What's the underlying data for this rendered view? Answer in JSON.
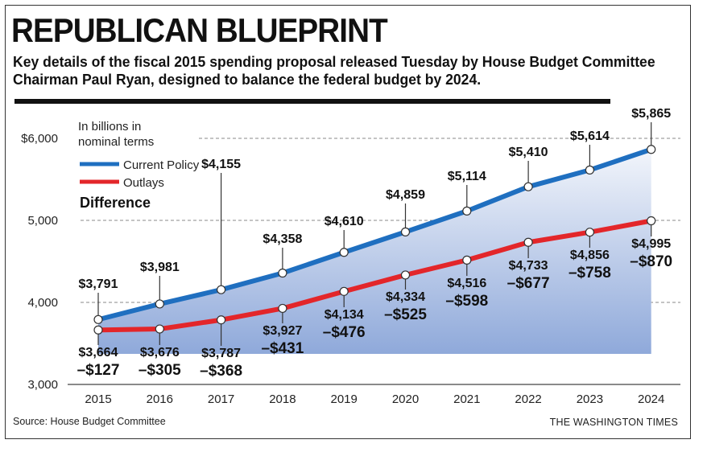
{
  "header": {
    "title": "REPUBLICAN BLUEPRINT",
    "subtitle": "Key details of the fiscal 2015 spending proposal released Tuesday by House Budget Committee Chairman Paul Ryan, designed to balance the federal budget by 2024."
  },
  "footer": {
    "source": "Source: House Budget Committee",
    "credit": "THE WASHINGTON TIMES"
  },
  "colors": {
    "current_policy": "#1f6fc0",
    "outlays": "#e3262a",
    "fill_top": "#f2f5fb",
    "fill_bottom": "#8fa9da"
  },
  "chart_data": {
    "type": "line",
    "unit_note": "In billions in nominal terms",
    "legend_title": "Difference",
    "x": [
      "2015",
      "2016",
      "2017",
      "2018",
      "2019",
      "2020",
      "2021",
      "2022",
      "2023",
      "2024"
    ],
    "ylim": [
      3000,
      6200
    ],
    "yticks": [
      3000,
      4000,
      5000,
      6000
    ],
    "ytick_labels": [
      "3,000",
      "4,000",
      "5,000",
      "$6,000"
    ],
    "grid": "dashed at 4,000, 5,000, 6,000",
    "legend_position": "top-left",
    "series": [
      {
        "name": "Current Policy",
        "values": [
          3791,
          3981,
          4155,
          4358,
          4610,
          4859,
          5114,
          5410,
          5614,
          5865
        ],
        "labels": [
          "$3,791",
          "$3,981",
          "$4,155",
          "$4,358",
          "$4,610",
          "$4,859",
          "$5,114",
          "$5,410",
          "$5,614",
          "$5,865"
        ]
      },
      {
        "name": "Outlays",
        "values": [
          3664,
          3676,
          3787,
          3927,
          4134,
          4334,
          4516,
          4733,
          4856,
          4995
        ],
        "labels": [
          "$3,664",
          "$3,676",
          "$3,787",
          "$3,927",
          "$4,134",
          "$4,334",
          "$4,516",
          "$4,733",
          "$4,856",
          "$4,995"
        ]
      }
    ],
    "difference": [
      -127,
      -305,
      -368,
      -431,
      -476,
      -525,
      -598,
      -677,
      -758,
      -870
    ],
    "difference_labels": [
      "–$127",
      "–$305",
      "–$368",
      "–$431",
      "–$476",
      "–$525",
      "–$598",
      "–$677",
      "–$758",
      "–$870"
    ]
  }
}
